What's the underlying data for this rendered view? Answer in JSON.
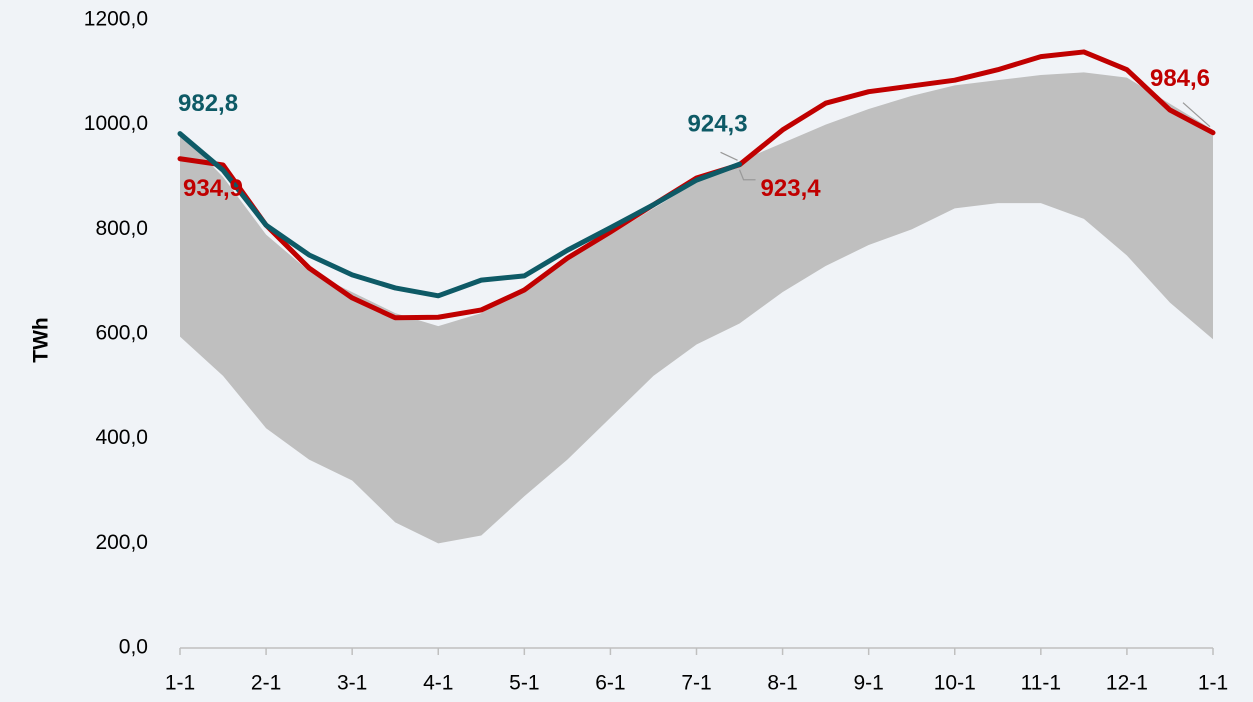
{
  "chart_data": {
    "type": "line",
    "y_label": "TWh",
    "xlim": [
      0,
      12
    ],
    "xticks": [
      {
        "value": 0,
        "label": "1-1"
      },
      {
        "value": 1,
        "label": "2-1"
      },
      {
        "value": 2,
        "label": "3-1"
      },
      {
        "value": 3,
        "label": "4-1"
      },
      {
        "value": 4,
        "label": "5-1"
      },
      {
        "value": 5,
        "label": "6-1"
      },
      {
        "value": 6,
        "label": "7-1"
      },
      {
        "value": 7,
        "label": "8-1"
      },
      {
        "value": 8,
        "label": "9-1"
      },
      {
        "value": 9,
        "label": "10-1"
      },
      {
        "value": 10,
        "label": "11-1"
      },
      {
        "value": 11,
        "label": "12-1"
      },
      {
        "value": 12,
        "label": "1-1"
      }
    ],
    "ylim": [
      0,
      1200
    ],
    "yticks": [
      {
        "value": 0,
        "label": "0,0"
      },
      {
        "value": 200,
        "label": "200,0"
      },
      {
        "value": 400,
        "label": "400,0"
      },
      {
        "value": 600,
        "label": "600,0"
      },
      {
        "value": 800,
        "label": "800,0"
      },
      {
        "value": 1000,
        "label": "1000,0"
      },
      {
        "value": 1200,
        "label": "1200,0"
      }
    ],
    "x": [
      0,
      0.5,
      1,
      1.5,
      2,
      2.5,
      3,
      3.5,
      4,
      4.5,
      5,
      5.5,
      6,
      6.5,
      7,
      7.5,
      8,
      8.5,
      9,
      9.5,
      10,
      10.5,
      11,
      11.5,
      12
    ],
    "band": {
      "color": "#bfbfbf",
      "upper": [
        985,
        900,
        790,
        720,
        680,
        640,
        615,
        640,
        690,
        740,
        790,
        840,
        890,
        930,
        965,
        1000,
        1030,
        1055,
        1075,
        1085,
        1095,
        1100,
        1090,
        1040,
        990
      ],
      "lower": [
        595,
        520,
        420,
        360,
        320,
        240,
        200,
        215,
        290,
        360,
        440,
        520,
        580,
        620,
        680,
        730,
        770,
        800,
        840,
        850,
        850,
        820,
        750,
        660,
        590
      ]
    },
    "series": [
      {
        "color": "#c00000",
        "values": [
          934.9,
          923,
          808,
          726,
          669,
          631,
          632,
          646,
          684,
          745,
          795,
          847,
          898,
          923.4,
          990,
          1041,
          1063,
          1074,
          1085,
          1105,
          1130,
          1139,
          1105,
          1028,
          984.6
        ],
        "value_labels": [
          "934,9",
          null,
          null,
          null,
          null,
          null,
          null,
          null,
          null,
          null,
          null,
          null,
          null,
          "923,4",
          null,
          null,
          null,
          null,
          null,
          null,
          null,
          null,
          null,
          null,
          "984,6"
        ]
      },
      {
        "color": "#0e5a66",
        "values": [
          982.8,
          913,
          808,
          751,
          713,
          688,
          673,
          703,
          711,
          760,
          803,
          847,
          894,
          924.3,
          null,
          null,
          null,
          null,
          null,
          null,
          null,
          null,
          null,
          null,
          null
        ],
        "value_labels": [
          "982,8",
          null,
          null,
          null,
          null,
          null,
          null,
          null,
          null,
          null,
          null,
          null,
          null,
          "924,3",
          null,
          null,
          null,
          null,
          null,
          null,
          null,
          null,
          null,
          null,
          null
        ]
      }
    ]
  }
}
